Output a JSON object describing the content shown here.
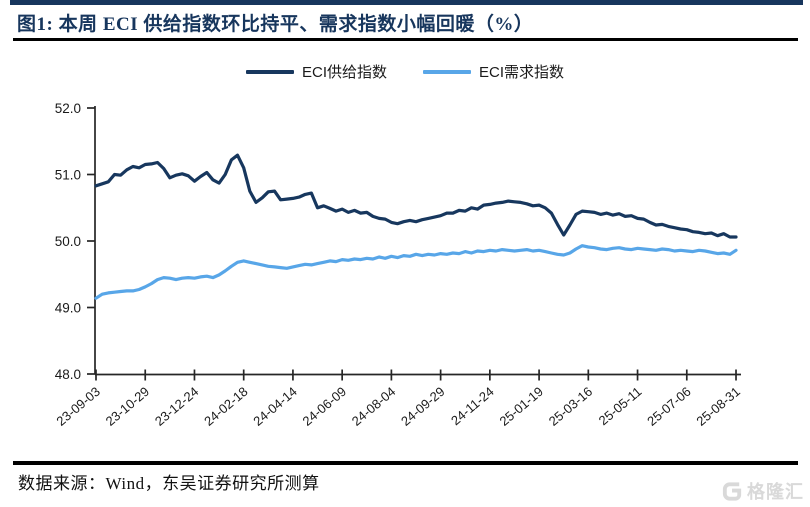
{
  "figure": {
    "title": "图1:  本周 ECI 供给指数环比持平、需求指数小幅回暖（%）",
    "source_note": "数据来源：Wind，东吴证券研究所测算",
    "watermark": "格隆汇"
  },
  "colors": {
    "accent_navy": "#17365D",
    "supply_line": "#17375E",
    "demand_line": "#58A6E8",
    "axis": "#262626",
    "tick_text": "#1a1a1a",
    "rule": "#000000",
    "watermark": "#D9D9D9"
  },
  "chart_data": {
    "type": "line",
    "title": "本周 ECI 供给指数环比持平、需求指数小幅回暖（%）",
    "xlabel": "",
    "ylabel": "",
    "ylim": [
      48.0,
      52.0
    ],
    "grid": false,
    "legend_position": "top",
    "y_ticks": [
      "52.0",
      "51.0",
      "50.0",
      "49.0",
      "48.0"
    ],
    "x_tick_labels": [
      "23-09-03",
      "23-10-29",
      "23-12-24",
      "24-02-18",
      "24-04-14",
      "24-06-09",
      "24-08-04",
      "24-09-29",
      "24-11-24",
      "25-01-19",
      "25-03-16",
      "25-05-11",
      "25-07-06",
      "25-08-31"
    ],
    "x_points_per_tick": 8,
    "x_label_rotation_deg": -40,
    "series": [
      {
        "name": "ECI供给指数",
        "color": "#17375E",
        "values": [
          50.83,
          50.86,
          50.89,
          51.0,
          50.99,
          51.07,
          51.12,
          51.1,
          51.15,
          51.16,
          51.18,
          51.09,
          50.95,
          50.99,
          51.01,
          50.98,
          50.9,
          50.97,
          51.03,
          50.92,
          50.87,
          51.0,
          51.22,
          51.29,
          51.1,
          50.75,
          50.58,
          50.65,
          50.74,
          50.75,
          50.62,
          50.63,
          50.64,
          50.66,
          50.7,
          50.72,
          50.5,
          50.53,
          50.49,
          50.45,
          50.48,
          50.43,
          50.46,
          50.42,
          50.43,
          50.37,
          50.34,
          50.33,
          50.28,
          50.26,
          50.29,
          50.31,
          50.29,
          50.32,
          50.34,
          50.36,
          50.38,
          50.42,
          50.42,
          50.46,
          50.45,
          50.5,
          50.48,
          50.54,
          50.55,
          50.57,
          50.58,
          50.6,
          50.59,
          50.58,
          50.56,
          50.53,
          50.54,
          50.5,
          50.42,
          50.25,
          50.09,
          50.24,
          50.4,
          50.45,
          50.44,
          50.43,
          50.4,
          50.42,
          50.39,
          50.41,
          50.37,
          50.38,
          50.34,
          50.33,
          50.28,
          50.24,
          50.25,
          50.22,
          50.2,
          50.18,
          50.17,
          50.14,
          50.13,
          50.11,
          50.12,
          50.08,
          50.11,
          50.06,
          50.06
        ]
      },
      {
        "name": "ECI需求指数",
        "color": "#58A6E8",
        "values": [
          49.14,
          49.2,
          49.22,
          49.23,
          49.24,
          49.25,
          49.25,
          49.27,
          49.31,
          49.36,
          49.42,
          49.45,
          49.44,
          49.42,
          49.44,
          49.45,
          49.44,
          49.46,
          49.47,
          49.45,
          49.49,
          49.55,
          49.62,
          49.68,
          49.7,
          49.68,
          49.66,
          49.64,
          49.62,
          49.61,
          49.6,
          49.59,
          49.61,
          49.63,
          49.65,
          49.64,
          49.66,
          49.68,
          49.7,
          49.69,
          49.72,
          49.71,
          49.73,
          49.72,
          49.74,
          49.73,
          49.76,
          49.74,
          49.77,
          49.75,
          49.78,
          49.77,
          49.8,
          49.78,
          49.8,
          49.79,
          49.81,
          49.8,
          49.82,
          49.81,
          49.84,
          49.82,
          49.85,
          49.84,
          49.86,
          49.85,
          49.87,
          49.86,
          49.85,
          49.86,
          49.87,
          49.85,
          49.86,
          49.84,
          49.82,
          49.8,
          49.79,
          49.82,
          49.88,
          49.93,
          49.91,
          49.9,
          49.88,
          49.87,
          49.89,
          49.9,
          49.88,
          49.87,
          49.89,
          49.88,
          49.87,
          49.86,
          49.88,
          49.87,
          49.85,
          49.86,
          49.85,
          49.84,
          49.86,
          49.85,
          49.83,
          49.81,
          49.82,
          49.8,
          49.86
        ]
      }
    ]
  }
}
